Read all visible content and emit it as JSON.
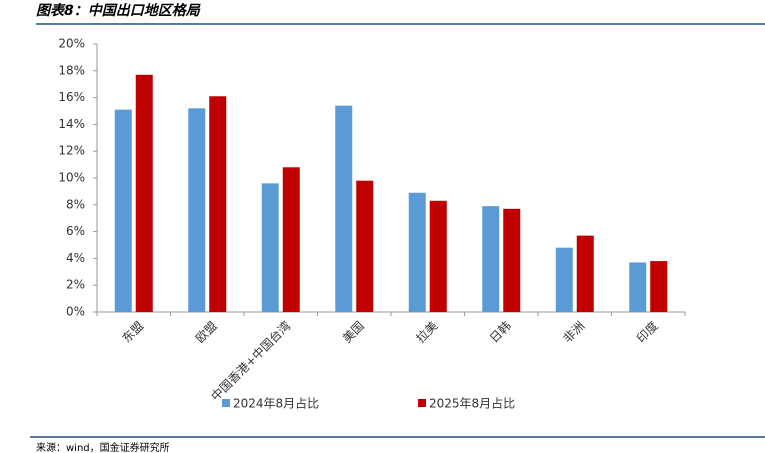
{
  "header": {
    "title": "图表8：中国出口地区格局"
  },
  "chart_data": {
    "type": "bar",
    "categories": [
      "东盟",
      "欧盟",
      "中国香港+中国台湾",
      "美国",
      "拉美",
      "日韩",
      "非洲",
      "印度"
    ],
    "series": [
      {
        "name": "2024年8月占比",
        "color": "#5b9bd5",
        "values": [
          15.1,
          15.2,
          9.6,
          15.4,
          8.9,
          7.9,
          4.8,
          3.7
        ]
      },
      {
        "name": "2025年8月占比",
        "color": "#c00000",
        "values": [
          17.7,
          16.1,
          10.8,
          9.8,
          8.3,
          7.7,
          5.7,
          3.8
        ]
      }
    ],
    "ylim": [
      0,
      20
    ],
    "yticks": [
      {
        "value": 0,
        "label": "0%"
      },
      {
        "value": 2,
        "label": "2%"
      },
      {
        "value": 4,
        "label": "4%"
      },
      {
        "value": 6,
        "label": "6%"
      },
      {
        "value": 8,
        "label": "8%"
      },
      {
        "value": 10,
        "label": "10%"
      },
      {
        "value": 12,
        "label": "12%"
      },
      {
        "value": 14,
        "label": "14%"
      },
      {
        "value": 16,
        "label": "16%"
      },
      {
        "value": 18,
        "label": "18%"
      },
      {
        "value": 20,
        "label": "20%"
      }
    ],
    "grid": false
  },
  "footer": {
    "source": "来源：wind，国金证券研究所"
  }
}
